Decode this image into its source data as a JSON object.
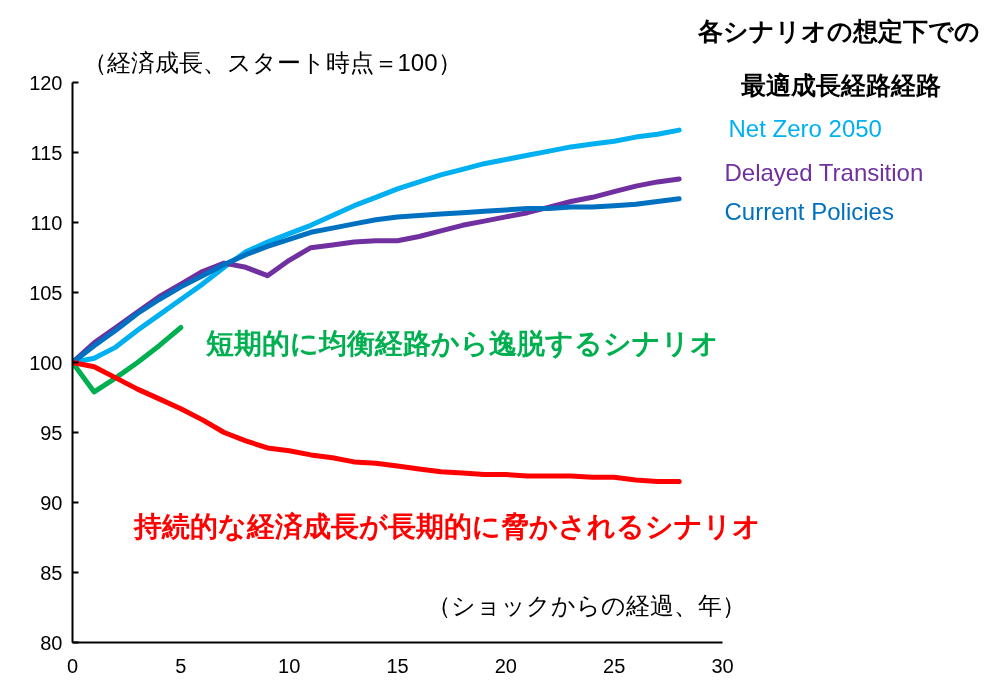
{
  "chart_data": {
    "type": "line",
    "ylabel": "（経済成長、スタート時点＝100）",
    "xlabel": "（ショックからの経過、年）",
    "legend_title": "各シナリオの想定下での最適成長経路経路",
    "xlim": [
      0,
      30
    ],
    "xticks": [
      0,
      5,
      10,
      15,
      20,
      25,
      30
    ],
    "ylim": [
      80,
      120
    ],
    "yticks": [
      80,
      85,
      90,
      95,
      100,
      105,
      110,
      115,
      120
    ],
    "grid": false,
    "marker": "none",
    "line_style": "solid",
    "x": [
      0,
      1,
      2,
      3,
      4,
      5,
      6,
      7,
      8,
      9,
      10,
      11,
      12,
      13,
      14,
      15,
      16,
      17,
      18,
      19,
      20,
      21,
      22,
      23,
      24,
      25,
      26,
      27,
      28
    ],
    "series": [
      {
        "name": "Net Zero 2050",
        "color": "#00b0f0",
        "values": [
          100,
          100.3,
          101.1,
          102.3,
          103.4,
          104.5,
          105.6,
          106.8,
          107.9,
          108.6,
          109.2,
          109.8,
          110.5,
          111.2,
          111.8,
          112.4,
          112.9,
          113.4,
          113.8,
          114.2,
          114.5,
          114.8,
          115.1,
          115.4,
          115.6,
          115.8,
          116.1,
          116.3,
          116.6
        ]
      },
      {
        "name": "Delayed Transition",
        "color": "#7030a0",
        "values": [
          100,
          101.4,
          102.5,
          103.6,
          104.7,
          105.6,
          106.5,
          107.1,
          106.8,
          106.2,
          107.3,
          108.2,
          108.4,
          108.6,
          108.7,
          108.7,
          109.0,
          109.4,
          109.8,
          110.1,
          110.4,
          110.7,
          111.1,
          111.5,
          111.8,
          112.2,
          112.6,
          112.9,
          113.1
        ]
      },
      {
        "name": "Current Policies",
        "color": "#0070c0",
        "values": [
          100,
          101.2,
          102.3,
          103.5,
          104.5,
          105.4,
          106.2,
          107.0,
          107.7,
          108.3,
          108.8,
          109.3,
          109.6,
          109.9,
          110.2,
          110.4,
          110.5,
          110.6,
          110.7,
          110.8,
          110.9,
          111.0,
          111.0,
          111.1,
          111.1,
          111.2,
          111.3,
          111.5,
          111.7
        ]
      },
      {
        "name": "短期的に均衡経路から逸脱するシナリオ",
        "color": "#00b050",
        "x": [
          0,
          1,
          2,
          3,
          4,
          5
        ],
        "values": [
          100,
          97.9,
          98.9,
          100.0,
          101.2,
          102.5
        ]
      },
      {
        "name": "持続的な経済成長が長期的に脅かされるシナリオ",
        "color": "#ff0000",
        "values": [
          100,
          99.7,
          98.9,
          98.1,
          97.4,
          96.7,
          95.9,
          95.0,
          94.4,
          93.9,
          93.7,
          93.4,
          93.2,
          92.9,
          92.8,
          92.6,
          92.4,
          92.2,
          92.1,
          92.0,
          92.0,
          91.9,
          91.9,
          91.9,
          91.8,
          91.8,
          91.6,
          91.5,
          91.5
        ]
      }
    ]
  }
}
